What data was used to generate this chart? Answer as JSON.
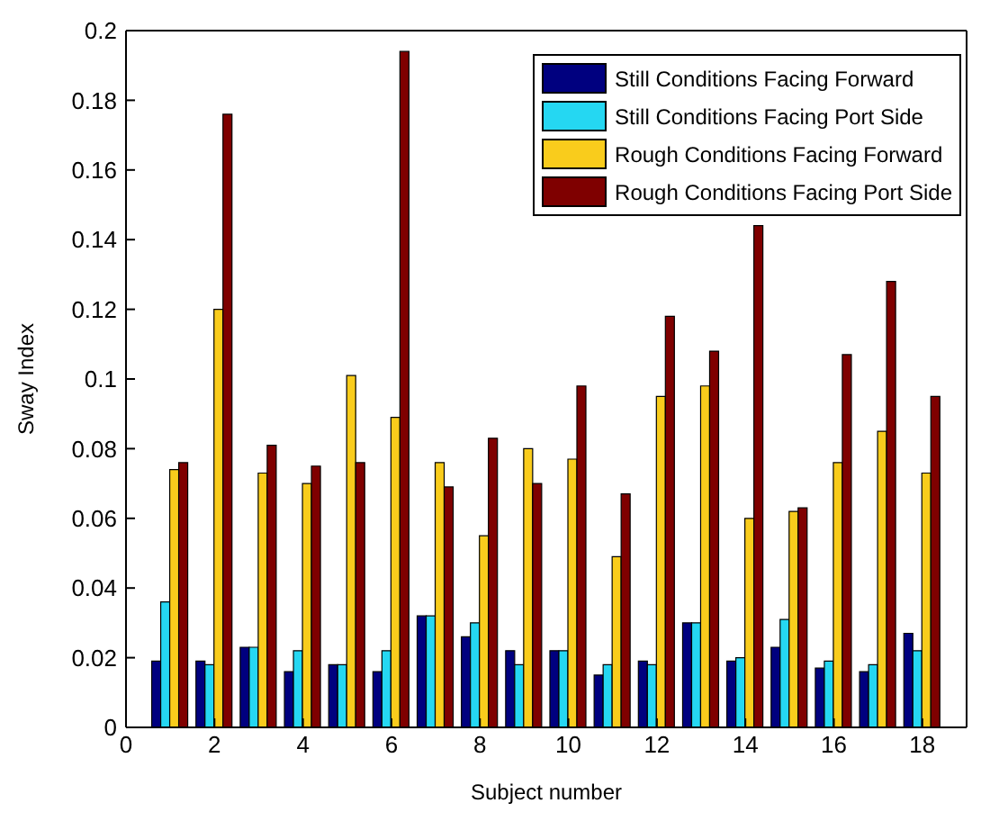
{
  "chart_data": {
    "type": "bar",
    "xlabel": "Subject number",
    "ylabel": "Sway Index",
    "x": [
      1,
      2,
      3,
      4,
      5,
      6,
      7,
      8,
      9,
      10,
      11,
      12,
      13,
      14,
      15,
      16,
      17,
      18
    ],
    "xlim": [
      0,
      19
    ],
    "xticks": [
      0,
      2,
      4,
      6,
      8,
      10,
      12,
      14,
      16,
      18
    ],
    "ylim": [
      0,
      0.2
    ],
    "yticks": [
      0,
      0.02,
      0.04,
      0.06,
      0.08,
      0.1,
      0.12,
      0.14,
      0.16,
      0.18,
      0.2
    ],
    "grid": false,
    "legend": "top right",
    "series": [
      {
        "name": "Still Conditions Facing Forward",
        "color": "#00007f",
        "values": [
          0.019,
          0.019,
          0.023,
          0.016,
          0.018,
          0.016,
          0.032,
          0.026,
          0.022,
          0.022,
          0.015,
          0.019,
          0.03,
          0.019,
          0.023,
          0.017,
          0.016,
          0.027
        ]
      },
      {
        "name": "Still Conditions Facing Port Side",
        "color": "#25d7f2",
        "values": [
          0.036,
          0.018,
          0.023,
          0.022,
          0.018,
          0.022,
          0.032,
          0.03,
          0.018,
          0.022,
          0.018,
          0.018,
          0.03,
          0.02,
          0.031,
          0.019,
          0.018,
          0.022
        ]
      },
      {
        "name": "Rough Conditions Facing Forward",
        "color": "#f9cc1c",
        "values": [
          0.074,
          0.12,
          0.073,
          0.07,
          0.101,
          0.089,
          0.076,
          0.055,
          0.08,
          0.077,
          0.049,
          0.095,
          0.098,
          0.06,
          0.062,
          0.076,
          0.085,
          0.073
        ]
      },
      {
        "name": "Rough Conditions Facing Port Side",
        "color": "#7f0000",
        "values": [
          0.076,
          0.176,
          0.081,
          0.075,
          0.076,
          0.194,
          0.069,
          0.083,
          0.07,
          0.098,
          0.067,
          0.118,
          0.108,
          0.144,
          0.063,
          0.107,
          0.128,
          0.095
        ]
      }
    ]
  }
}
